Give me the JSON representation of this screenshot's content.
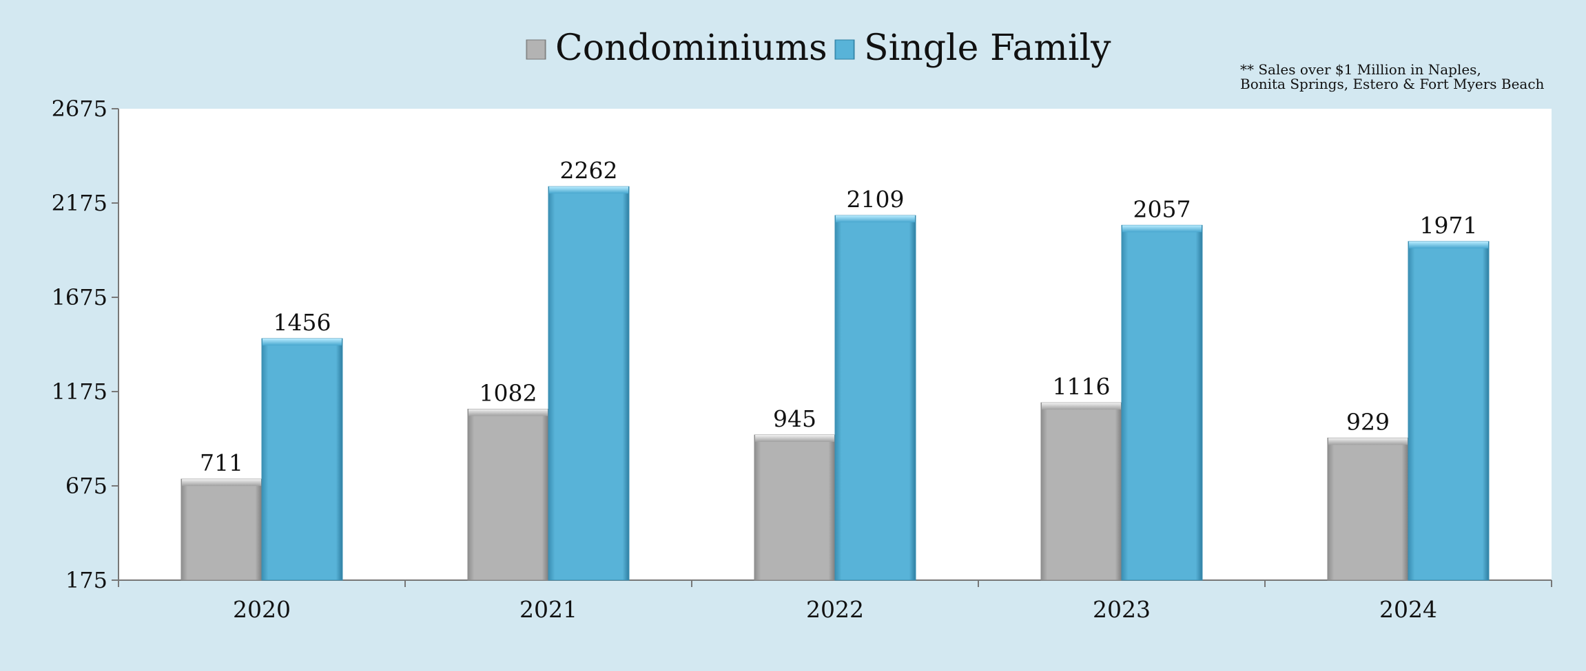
{
  "footnote": {
    "line1": "** Sales over $1 Million in Naples,",
    "line2": "Bonita Springs, Estero & Fort Myers Beach"
  },
  "colors": {
    "background": "#d3e8f1",
    "plot_area": "#ffffff",
    "condominiums": "#b0b0b0",
    "single_family": "#56b1d6"
  },
  "chart_data": {
    "type": "bar",
    "categories": [
      "2020",
      "2021",
      "2022",
      "2023",
      "2024"
    ],
    "series": [
      {
        "name": "Condominiums",
        "values": [
          711,
          1082,
          945,
          1116,
          929
        ]
      },
      {
        "name": "Single Family",
        "values": [
          1456,
          2262,
          2109,
          2057,
          1971
        ]
      }
    ],
    "ylim": [
      175,
      2675
    ],
    "yticks": [
      175,
      675,
      1175,
      1675,
      2175,
      2675
    ],
    "legend_position": "top-center",
    "grid": false,
    "data_labels": true
  }
}
